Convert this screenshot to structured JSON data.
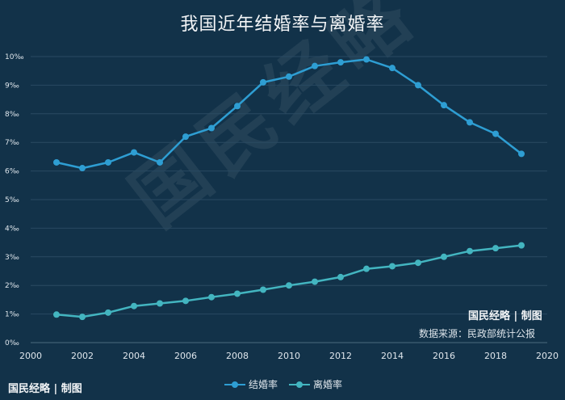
{
  "title": "我国近年结婚率与离婚率",
  "watermark": "国民经略",
  "brand": "国民经略 | 制图",
  "source": "数据来源：民政部统计公报",
  "footer_logo": "国民经略 | 制图",
  "colors": {
    "background": "#123249",
    "grid": "#2a4a62",
    "text": "#dfe6ec",
    "marriage": "#2e9ed3",
    "divorce": "#43b5c0"
  },
  "chart_data": {
    "type": "line",
    "title": "我国近年结婚率与离婚率",
    "xlabel": "",
    "ylabel": "",
    "xlim": [
      2000,
      2020
    ],
    "ylim": [
      0,
      10
    ],
    "x_ticks": [
      "2000",
      "2002",
      "2004",
      "2006",
      "2008",
      "2010",
      "2012",
      "2014",
      "2016",
      "2018",
      "2020"
    ],
    "y_ticks": [
      "0‰",
      "1‰",
      "2‰",
      "3‰",
      "4‰",
      "5‰",
      "6‰",
      "7‰",
      "8‰",
      "9‰",
      "10‰"
    ],
    "grid": "horizontal",
    "legend": "bottom",
    "x": [
      2001,
      2002,
      2003,
      2004,
      2005,
      2006,
      2007,
      2008,
      2009,
      2010,
      2011,
      2012,
      2013,
      2014,
      2015,
      2016,
      2017,
      2018,
      2019
    ],
    "series": [
      {
        "name": "结婚率",
        "color": "#2e9ed3",
        "values": [
          6.3,
          6.1,
          6.3,
          6.65,
          6.3,
          7.2,
          7.5,
          8.27,
          9.1,
          9.3,
          9.67,
          9.8,
          9.9,
          9.6,
          9.0,
          8.3,
          7.7,
          7.3,
          6.6
        ]
      },
      {
        "name": "离婚率",
        "color": "#43b5c0",
        "values": [
          0.98,
          0.9,
          1.05,
          1.28,
          1.37,
          1.46,
          1.59,
          1.71,
          1.85,
          2.0,
          2.13,
          2.29,
          2.58,
          2.67,
          2.79,
          3.0,
          3.2,
          3.3,
          3.4
        ]
      }
    ]
  }
}
